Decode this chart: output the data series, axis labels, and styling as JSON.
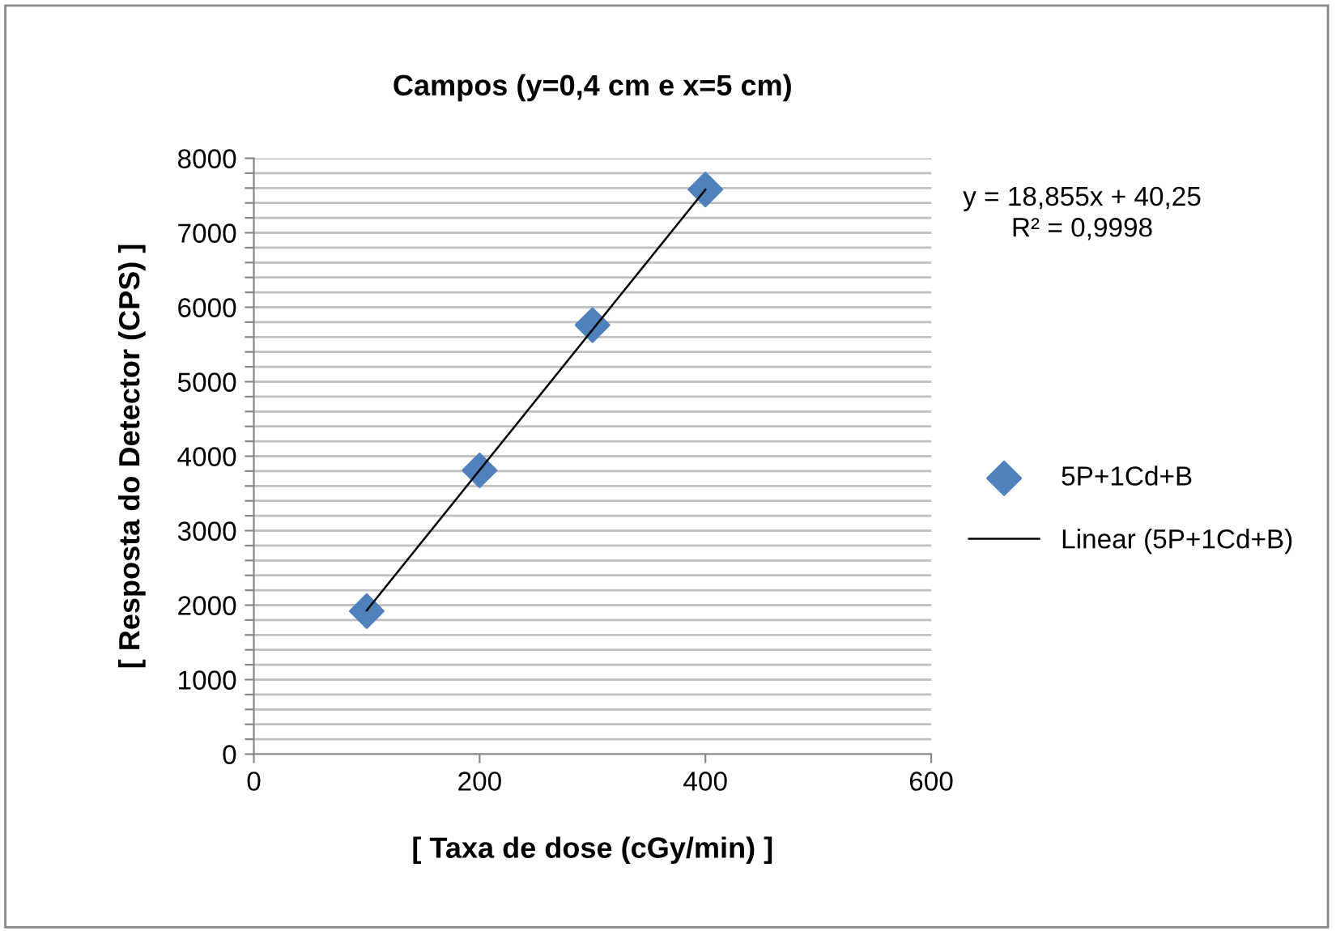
{
  "chart_data": {
    "type": "scatter",
    "title": "Campos (y=0,4 cm e x=5 cm)",
    "xlabel": "[ Taxa de dose (cGy/min) ]",
    "ylabel": "[ Resposta do Detector (CPS) ]",
    "series": [
      {
        "name": "5P+1Cd+B",
        "color": "#4f81bd",
        "marker": "diamond",
        "x": [
          100,
          200,
          300,
          400
        ],
        "values": [
          1920,
          3810,
          5760,
          7580
        ]
      },
      {
        "name": "Linear (5P+1Cd+B)",
        "type": "line",
        "color": "#000000",
        "marker": "none",
        "line_style": "solid",
        "x": [
          100,
          400
        ],
        "values": [
          1930,
          7580
        ]
      }
    ],
    "xlim": [
      0,
      600
    ],
    "xticks": [
      0,
      200,
      400,
      600
    ],
    "ylim": [
      0,
      8000
    ],
    "yticks": [
      0,
      {
        "value": 200,
        "label": null
      },
      {
        "value": 400,
        "label": null
      },
      {
        "value": 600,
        "label": null
      },
      {
        "value": 800,
        "label": null
      },
      1000,
      {
        "value": 1200,
        "label": null
      },
      {
        "value": 1400,
        "label": null
      },
      {
        "value": 1600,
        "label": null
      },
      {
        "value": 1800,
        "label": null
      },
      2000,
      {
        "value": 2200,
        "label": null
      },
      {
        "value": 2400,
        "label": null
      },
      {
        "value": 2600,
        "label": null
      },
      {
        "value": 2800,
        "label": null
      },
      3000,
      {
        "value": 3200,
        "label": null
      },
      {
        "value": 3400,
        "label": null
      },
      {
        "value": 3600,
        "label": null
      },
      {
        "value": 3800,
        "label": null
      },
      4000,
      {
        "value": 4200,
        "label": null
      },
      {
        "value": 4400,
        "label": null
      },
      {
        "value": 4600,
        "label": null
      },
      {
        "value": 4800,
        "label": null
      },
      5000,
      {
        "value": 5200,
        "label": null
      },
      {
        "value": 5400,
        "label": null
      },
      {
        "value": 5600,
        "label": null
      },
      {
        "value": 5800,
        "label": null
      },
      6000,
      {
        "value": 6200,
        "label": null
      },
      {
        "value": 6400,
        "label": null
      },
      {
        "value": 6600,
        "label": null
      },
      {
        "value": 6800,
        "label": null
      },
      7000,
      {
        "value": 7200,
        "label": null
      },
      {
        "value": 7400,
        "label": null
      },
      {
        "value": 7600,
        "label": null
      },
      {
        "value": 7800,
        "label": null
      },
      8000
    ],
    "grid": "y",
    "legend": "right",
    "annotations": [
      "y = 18,855x + 40,25\nR² = 0,9998"
    ]
  }
}
